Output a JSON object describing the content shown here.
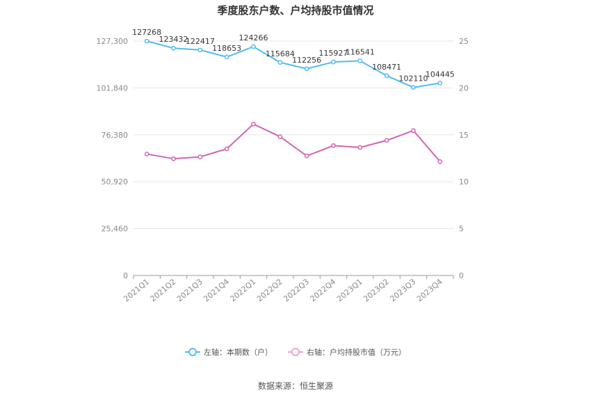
{
  "title": "季度股东户数、户均持股市值情况",
  "source_label": "数据来源：恒生聚源",
  "colors": {
    "left_series": "#4fbdef",
    "right_series": "#d263b0",
    "grid": "#e6e6e6",
    "axis": "#999999"
  },
  "chart_data": {
    "type": "line",
    "title": "季度股东户数、户均持股市值情况",
    "categories": [
      "2021Q1",
      "2021Q2",
      "2021Q3",
      "2021Q4",
      "2022Q1",
      "2022Q2",
      "2022Q3",
      "2022Q4",
      "2023Q1",
      "2023Q2",
      "2023Q3",
      "2023Q4"
    ],
    "left_axis": {
      "min": 0,
      "max": 127300,
      "ticks": [
        "0",
        "25,460",
        "50,920",
        "76,380",
        "101,840",
        "127,300"
      ]
    },
    "right_axis": {
      "min": 0,
      "max": 25,
      "ticks": [
        "0",
        "5",
        "10",
        "15",
        "20",
        "25"
      ]
    },
    "grid": true,
    "legend_position": "bottom",
    "series": [
      {
        "name": "左轴：本期数（户）",
        "axis": "left",
        "color": "#4fbdef",
        "values": [
          127268,
          123432,
          122417,
          118653,
          124266,
          115684,
          112256,
          115927,
          116541,
          108471,
          102110,
          104445
        ],
        "labels": [
          "127268",
          "123432",
          "122417",
          "118653",
          "124266",
          "115684",
          "112256",
          "115927",
          "116541",
          "108471",
          "102110",
          "104445"
        ]
      },
      {
        "name": "右轴：户均持股市值（万元）",
        "axis": "right",
        "color": "#d263b0",
        "values": [
          12.95,
          12.45,
          12.65,
          13.5,
          16.15,
          14.8,
          12.75,
          13.85,
          13.65,
          14.4,
          15.45,
          12.15
        ]
      }
    ]
  }
}
